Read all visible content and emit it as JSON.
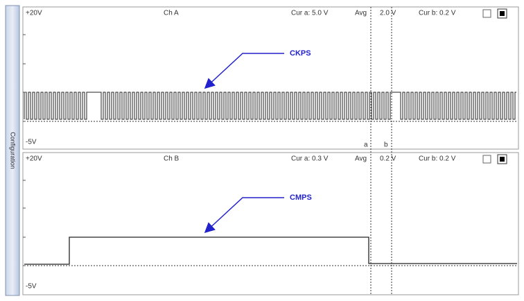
{
  "sidebar": {
    "label": "Configuration"
  },
  "channels": [
    {
      "name": "Ch A",
      "top_label": "+20V",
      "bottom_label": "-5V",
      "cursor_a": "Cur a: 5.0 V",
      "avg_label": "Avg",
      "avg_value": "2.0 V",
      "cursor_b": "Cur b: 0.2 V",
      "annotation": "CKPS",
      "cursor_markers": [
        "a",
        "b"
      ]
    },
    {
      "name": "Ch B",
      "top_label": "+20V",
      "bottom_label": "-5V",
      "cursor_a": "Cur a: 0.3 V",
      "avg_label": "Avg",
      "avg_value": "0.2 V",
      "cursor_b": "Cur b: 0.2 V",
      "annotation": "CMPS"
    }
  ]
}
